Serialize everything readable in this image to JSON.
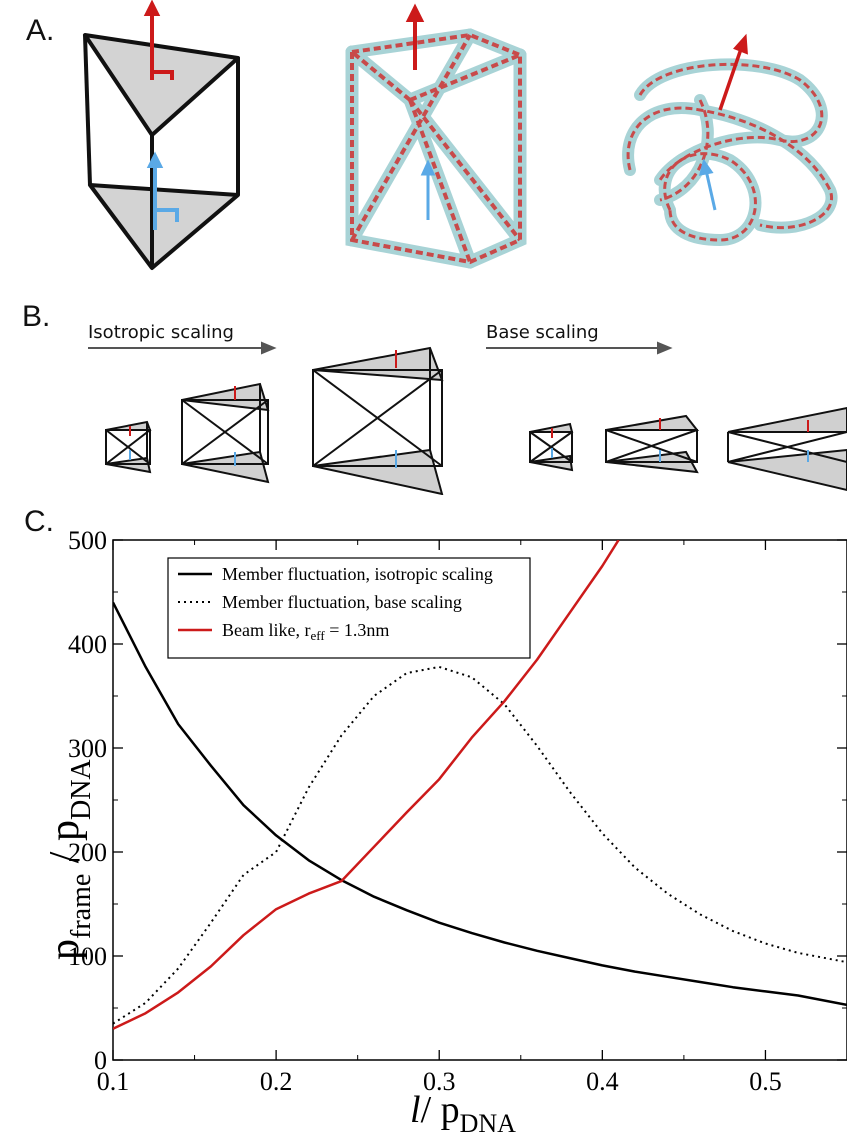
{
  "panels": {
    "a": {
      "label": "A."
    },
    "b": {
      "label": "B.",
      "left_arrow_label": "Isotropic scaling",
      "right_arrow_label": "Base scaling"
    },
    "c": {
      "label": "C."
    }
  },
  "colors": {
    "frame": "#111111",
    "face": "#d3d3d3",
    "red": "#cc1a1a",
    "blue": "#5aa9e6",
    "bead": "#9fcfd2",
    "dna_core": "#c84a4a"
  },
  "chart_data": {
    "type": "line",
    "xlim": [
      0.1,
      0.55
    ],
    "ylim": [
      0,
      500
    ],
    "xticks": [
      "0.1",
      "0.2",
      "0.3",
      "0.4",
      "0.5"
    ],
    "yticks": [
      "0",
      "100",
      "200",
      "300",
      "400",
      "500"
    ],
    "ylabel_main": "p",
    "ylabel_sub1": "frame",
    "ylabel_mid": " / p",
    "ylabel_sub2": "DNA",
    "xlabel_main": "l",
    "xlabel_mid": "/ p",
    "xlabel_sub": "DNA",
    "legend_position": "top-left",
    "series": [
      {
        "name": "Member fluctuation, isotropic scaling",
        "style": "solid",
        "color": "#000000",
        "x": [
          0.1,
          0.12,
          0.14,
          0.16,
          0.18,
          0.2,
          0.22,
          0.24,
          0.26,
          0.28,
          0.3,
          0.32,
          0.34,
          0.36,
          0.38,
          0.4,
          0.42,
          0.44,
          0.46,
          0.48,
          0.5,
          0.52,
          0.55
        ],
        "y": [
          440,
          378,
          323,
          283,
          245,
          216,
          192,
          173,
          157,
          144,
          132,
          122,
          113,
          105,
          98,
          91,
          85,
          80,
          75,
          70,
          66,
          62,
          53
        ]
      },
      {
        "name": "Member fluctuation, base scaling",
        "style": "dotted",
        "color": "#000000",
        "x": [
          0.1,
          0.12,
          0.14,
          0.16,
          0.18,
          0.2,
          0.22,
          0.24,
          0.26,
          0.28,
          0.3,
          0.32,
          0.34,
          0.36,
          0.38,
          0.4,
          0.42,
          0.44,
          0.46,
          0.48,
          0.5,
          0.52,
          0.55
        ],
        "y": [
          35,
          55,
          88,
          132,
          178,
          200,
          262,
          312,
          350,
          372,
          378,
          368,
          342,
          302,
          258,
          218,
          185,
          160,
          140,
          124,
          112,
          103,
          94
        ]
      },
      {
        "name_prefix": "Beam like, r",
        "name_sub": "eff",
        "name_suffix": " = 1.3nm",
        "style": "solid",
        "color": "#cc1a1a",
        "x": [
          0.1,
          0.12,
          0.14,
          0.16,
          0.18,
          0.2,
          0.22,
          0.24,
          0.26,
          0.28,
          0.3,
          0.32,
          0.34,
          0.36,
          0.38,
          0.4,
          0.41
        ],
        "y": [
          30,
          45,
          65,
          90,
          120,
          145,
          160,
          172,
          205,
          238,
          270,
          310,
          345,
          385,
          430,
          475,
          500
        ]
      }
    ]
  }
}
